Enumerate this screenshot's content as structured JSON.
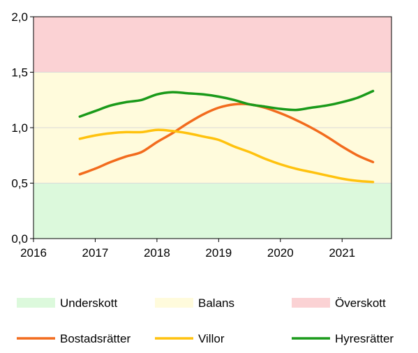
{
  "chart_data": {
    "type": "line",
    "title": "",
    "xlabel": "",
    "ylabel": "",
    "xlim": [
      2016,
      2021.8
    ],
    "ylim": [
      0,
      2
    ],
    "x_ticks": [
      "2016",
      "2017",
      "2018",
      "2019",
      "2020",
      "2021"
    ],
    "y_ticks": [
      "0,0",
      "0,5",
      "1,0",
      "1,5",
      "2,0"
    ],
    "grid": true,
    "legend_position": "bottom",
    "bands": [
      {
        "name": "Underskott",
        "from": 0.0,
        "to": 0.5,
        "color": "#dcf9dc"
      },
      {
        "name": "Balans",
        "from": 0.5,
        "to": 1.5,
        "color": "#fffbdc"
      },
      {
        "name": "Överskott",
        "from": 1.5,
        "to": 2.0,
        "color": "#fbd2d4"
      }
    ],
    "series": [
      {
        "name": "Bostadsrätter",
        "color": "#f26b1d",
        "x": [
          2016.75,
          2017.0,
          2017.25,
          2017.5,
          2017.75,
          2018.0,
          2018.25,
          2018.5,
          2018.75,
          2019.0,
          2019.25,
          2019.5,
          2019.75,
          2020.0,
          2020.25,
          2020.5,
          2020.75,
          2021.0,
          2021.25,
          2021.5
        ],
        "values": [
          0.58,
          0.63,
          0.69,
          0.74,
          0.78,
          0.87,
          0.95,
          1.04,
          1.12,
          1.18,
          1.21,
          1.21,
          1.18,
          1.13,
          1.07,
          1.0,
          0.92,
          0.83,
          0.75,
          0.69
        ]
      },
      {
        "name": "Villor",
        "color": "#ffc20e",
        "x": [
          2016.75,
          2017.0,
          2017.25,
          2017.5,
          2017.75,
          2018.0,
          2018.25,
          2018.5,
          2018.75,
          2019.0,
          2019.25,
          2019.5,
          2019.75,
          2020.0,
          2020.25,
          2020.5,
          2020.75,
          2021.0,
          2021.25,
          2021.5
        ],
        "values": [
          0.9,
          0.93,
          0.95,
          0.96,
          0.96,
          0.98,
          0.97,
          0.95,
          0.92,
          0.89,
          0.83,
          0.78,
          0.72,
          0.67,
          0.63,
          0.6,
          0.57,
          0.54,
          0.52,
          0.51
        ]
      },
      {
        "name": "Hyresrätter",
        "color": "#1a9a1a",
        "x": [
          2016.75,
          2017.0,
          2017.25,
          2017.5,
          2017.75,
          2018.0,
          2018.25,
          2018.5,
          2018.75,
          2019.0,
          2019.25,
          2019.5,
          2019.75,
          2020.0,
          2020.25,
          2020.5,
          2020.75,
          2021.0,
          2021.25,
          2021.5
        ],
        "values": [
          1.1,
          1.15,
          1.2,
          1.23,
          1.25,
          1.3,
          1.32,
          1.31,
          1.3,
          1.28,
          1.25,
          1.21,
          1.19,
          1.17,
          1.16,
          1.18,
          1.2,
          1.23,
          1.27,
          1.33
        ]
      }
    ]
  }
}
